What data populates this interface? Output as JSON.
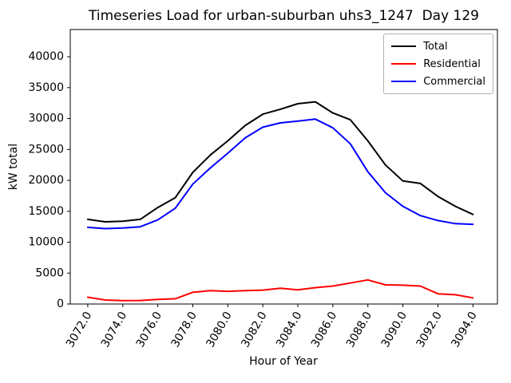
{
  "chart_data": {
    "type": "line",
    "title": "Timeseries Load for urban-suburban uhs3_1247  Day 129",
    "xlabel": "Hour of Year",
    "ylabel": "kW total",
    "grid": false,
    "legend_position": "upper right",
    "xlim": [
      3071.0,
      3095.4
    ],
    "ylim": [
      0,
      44400
    ],
    "xticks": [
      3072,
      3074,
      3076,
      3078,
      3080,
      3082,
      3084,
      3086,
      3088,
      3090,
      3092,
      3094
    ],
    "xtick_labels": [
      "3072.0",
      "3074.0",
      "3076.0",
      "3078.0",
      "3080.0",
      "3082.0",
      "3084.0",
      "3086.0",
      "3088.0",
      "3090.0",
      "3092.0",
      "3094.0"
    ],
    "yticks": [
      0,
      5000,
      10000,
      15000,
      20000,
      25000,
      30000,
      35000,
      40000
    ],
    "ytick_labels": [
      "0",
      "5000",
      "10000",
      "15000",
      "20000",
      "25000",
      "30000",
      "35000",
      "40000"
    ],
    "x": [
      3072,
      3073,
      3074,
      3075,
      3076,
      3077,
      3078,
      3079,
      3080,
      3081,
      3082,
      3083,
      3084,
      3085,
      3086,
      3087,
      3088,
      3089,
      3090,
      3091,
      3092,
      3093,
      3094
    ],
    "series": [
      {
        "name": "Total",
        "color": "#000000",
        "values": [
          13700,
          13300,
          13400,
          13700,
          15600,
          17200,
          21300,
          24100,
          26400,
          28900,
          30700,
          31500,
          32400,
          32700,
          30900,
          29800,
          26400,
          22500,
          19900,
          19500,
          17400,
          15800,
          14500
        ]
      },
      {
        "name": "Residential",
        "color": "#ff0000",
        "values": [
          1100,
          650,
          550,
          570,
          750,
          850,
          1900,
          2150,
          2050,
          2150,
          2250,
          2550,
          2300,
          2650,
          2900,
          3400,
          3900,
          3100,
          3050,
          2900,
          1650,
          1500,
          1000
        ]
      },
      {
        "name": "Commercial",
        "color": "#0000ff",
        "values": [
          12400,
          12200,
          12300,
          12500,
          13600,
          15500,
          19400,
          22000,
          24400,
          26900,
          28600,
          29300,
          29600,
          29900,
          28500,
          25900,
          21400,
          18000,
          15800,
          14300,
          13500,
          13000,
          12900
        ]
      }
    ]
  }
}
